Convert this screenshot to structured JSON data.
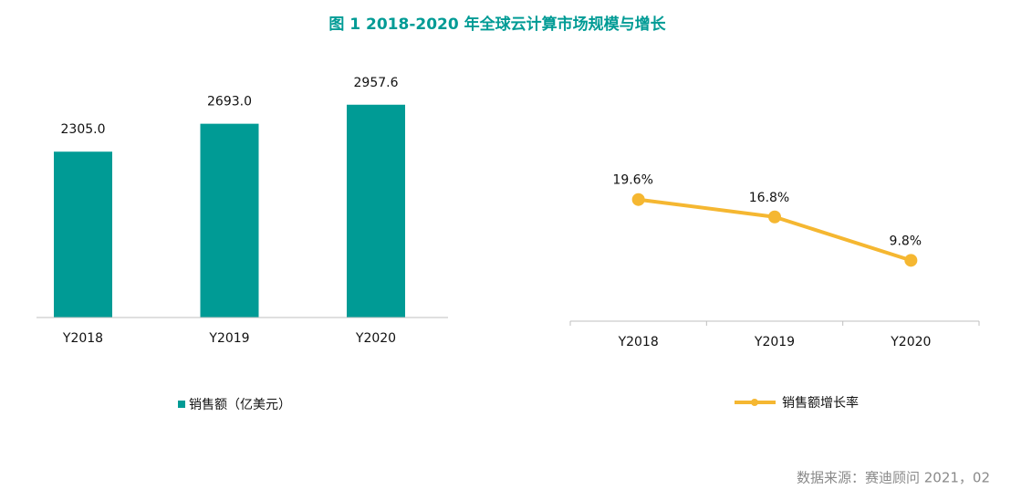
{
  "title": "图 1   2018-2020 年全球云计算市场规模与增长",
  "source": "数据来源：赛迪顾问   2021，02",
  "chart_data": [
    {
      "type": "bar",
      "categories": [
        "Y2018",
        "Y2019",
        "Y2020"
      ],
      "series": [
        {
          "name": "销售额（亿美元）",
          "color": "#009b95",
          "values": [
            2305,
            2693,
            2957.6
          ],
          "value_labels": [
            "2305.0",
            "2693.0",
            "2957.6"
          ]
        }
      ],
      "ylim": [
        0,
        3500
      ]
    },
    {
      "type": "line",
      "categories": [
        "Y2018",
        "Y2019",
        "Y2020"
      ],
      "series": [
        {
          "name": "销售额增长率",
          "color": "#f5b731",
          "values": [
            19.6,
            16.8,
            9.8
          ],
          "value_labels": [
            "19.6%",
            "16.8%",
            "9.8%"
          ]
        }
      ],
      "ylim": [
        0,
        25
      ]
    }
  ]
}
